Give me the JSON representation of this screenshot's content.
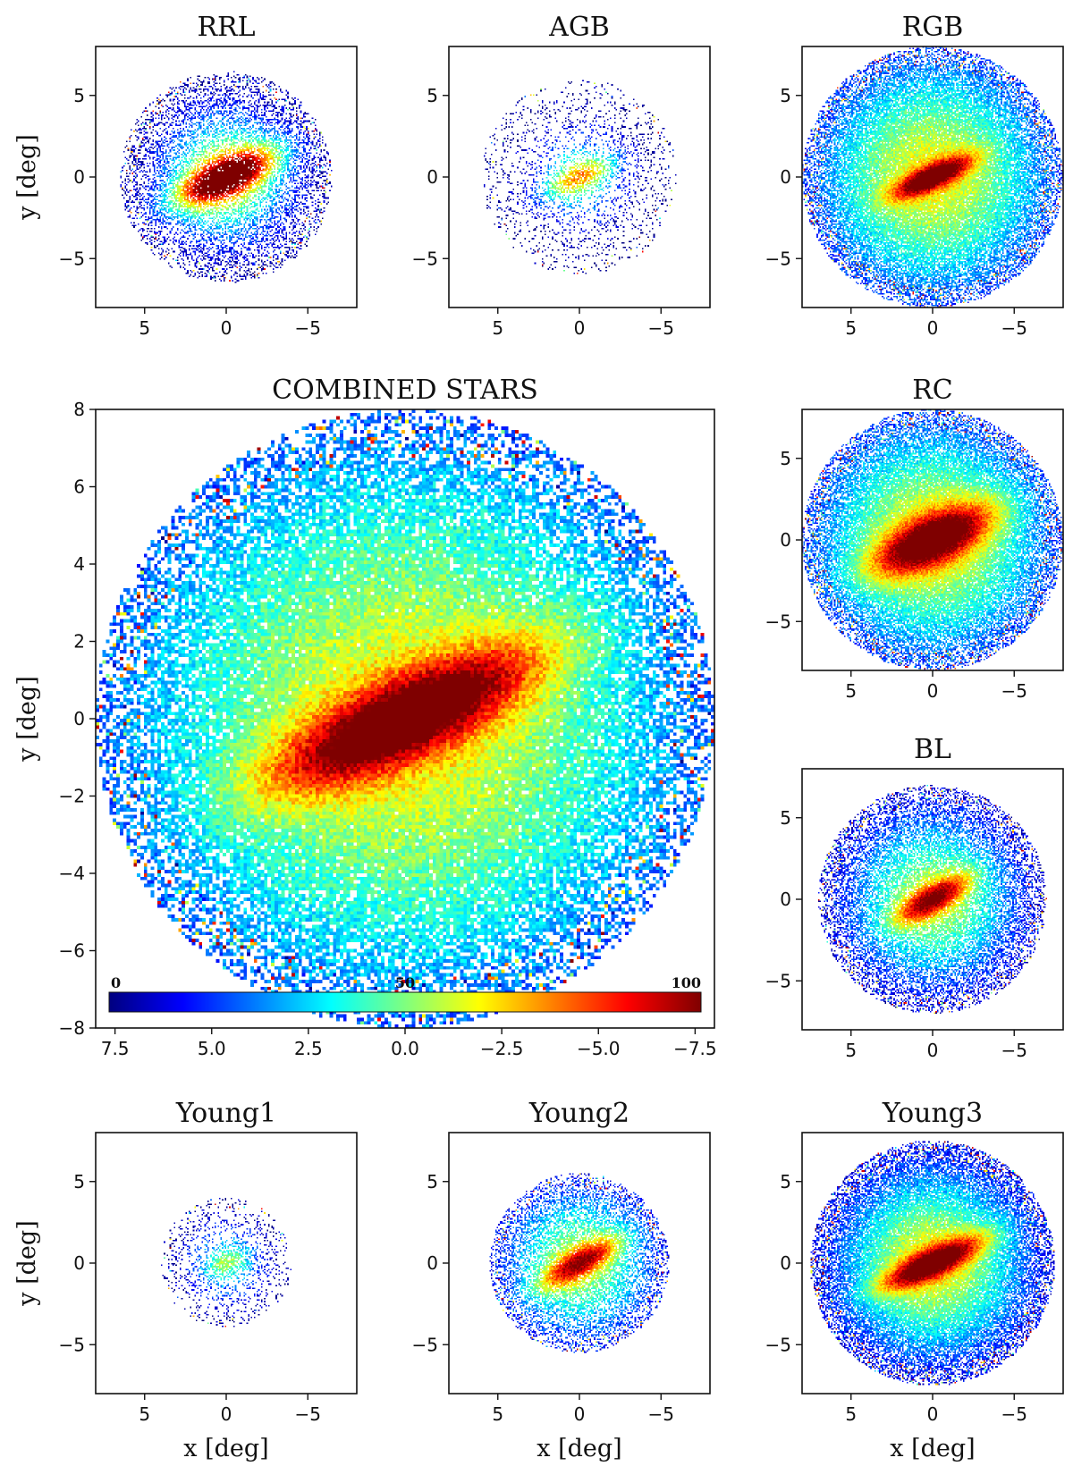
{
  "chart_data": [
    {
      "type": "heatmap",
      "title": "RRL",
      "xlabel": "",
      "ylabel": "y [deg]",
      "xlim": [
        8,
        -8
      ],
      "ylim": [
        -8,
        8
      ],
      "xticks": [
        "5",
        "0",
        "−5"
      ],
      "yticks": [
        "5",
        "0",
        "−5"
      ],
      "density": {
        "extent_radius": 6.5,
        "spread": 2.6,
        "fill": 0.45,
        "core_peak": 100,
        "core_angle_deg": 25,
        "core_length": 2.6,
        "core_width": 0.8
      }
    },
    {
      "type": "heatmap",
      "title": "AGB",
      "xlabel": "",
      "ylabel": "",
      "xlim": [
        8,
        -8
      ],
      "ylim": [
        -8,
        8
      ],
      "xticks": [
        "5",
        "0",
        "−5"
      ],
      "yticks": [
        "5",
        "0",
        "−5"
      ],
      "density": {
        "extent_radius": 6.0,
        "spread": 1.8,
        "fill": 0.15,
        "core_peak": 45,
        "core_angle_deg": 25,
        "core_length": 2.0,
        "core_width": 0.6
      }
    },
    {
      "type": "heatmap",
      "title": "RGB",
      "xlabel": "",
      "ylabel": "",
      "xlim": [
        8,
        -8
      ],
      "ylim": [
        -8,
        8
      ],
      "xticks": [
        "5",
        "0",
        "−5"
      ],
      "yticks": [
        "5",
        "0",
        "−5"
      ],
      "density": {
        "extent_radius": 8.0,
        "spread": 5.0,
        "fill": 0.95,
        "core_peak": 100,
        "core_angle_deg": 25,
        "core_length": 1.8,
        "core_width": 0.5
      }
    },
    {
      "type": "heatmap",
      "title": "COMBINED STARS",
      "xlabel": "",
      "ylabel": "y [deg]",
      "xlim": [
        8,
        -8
      ],
      "ylim": [
        -8,
        8
      ],
      "xticks": [
        "7.5",
        "5.0",
        "2.5",
        "0.0",
        "−2.5",
        "−5.0",
        "−7.5"
      ],
      "yticks": [
        "8",
        "6",
        "4",
        "2",
        "0",
        "−2",
        "−4",
        "−6",
        "−8"
      ],
      "colorbar": {
        "min_label": "0",
        "mid_label": "50",
        "max_label": "100"
      },
      "density": {
        "extent_radius": 8.0,
        "spread": 5.5,
        "fill": 1.0,
        "core_peak": 100,
        "core_angle_deg": 25,
        "core_length": 2.6,
        "core_width": 0.7
      }
    },
    {
      "type": "heatmap",
      "title": "RC",
      "xlabel": "",
      "ylabel": "",
      "xlim": [
        8,
        -8
      ],
      "ylim": [
        -8,
        8
      ],
      "xticks": [
        "5",
        "0",
        "−5"
      ],
      "yticks": [
        "5",
        "0",
        "−5"
      ],
      "density": {
        "extent_radius": 8.0,
        "spread": 5.0,
        "fill": 0.95,
        "core_peak": 100,
        "core_angle_deg": 25,
        "core_length": 2.8,
        "core_width": 1.0
      }
    },
    {
      "type": "heatmap",
      "title": "BL",
      "xlabel": "",
      "ylabel": "",
      "xlim": [
        8,
        -8
      ],
      "ylim": [
        -8,
        8
      ],
      "xticks": [
        "5",
        "0",
        "−5"
      ],
      "yticks": [
        "5",
        "0",
        "−5"
      ],
      "density": {
        "extent_radius": 7.0,
        "spread": 3.6,
        "fill": 0.7,
        "core_peak": 80,
        "core_angle_deg": 30,
        "core_length": 1.8,
        "core_width": 0.6
      }
    },
    {
      "type": "heatmap",
      "title": "Young1",
      "xlabel": "x [deg]",
      "ylabel": "y [deg]",
      "xlim": [
        8,
        -8
      ],
      "ylim": [
        -8,
        8
      ],
      "xticks": [
        "5",
        "0",
        "−5"
      ],
      "yticks": [
        "5",
        "0",
        "−5"
      ],
      "density": {
        "extent_radius": 4.0,
        "spread": 1.6,
        "fill": 0.2,
        "core_peak": 25,
        "core_angle_deg": 20,
        "core_length": 1.0,
        "core_width": 0.5
      }
    },
    {
      "type": "heatmap",
      "title": "Young2",
      "xlabel": "x [deg]",
      "ylabel": "",
      "xlim": [
        8,
        -8
      ],
      "ylim": [
        -8,
        8
      ],
      "xticks": [
        "5",
        "0",
        "−5"
      ],
      "yticks": [
        "5",
        "0",
        "−5"
      ],
      "density": {
        "extent_radius": 5.5,
        "spread": 3.2,
        "fill": 0.6,
        "core_peak": 75,
        "core_angle_deg": 30,
        "core_length": 2.0,
        "core_width": 0.6
      }
    },
    {
      "type": "heatmap",
      "title": "Young3",
      "xlabel": "x [deg]",
      "ylabel": "",
      "xlim": [
        8,
        -8
      ],
      "ylim": [
        -8,
        8
      ],
      "xticks": [
        "5",
        "0",
        "−5"
      ],
      "yticks": [
        "5",
        "0",
        "−5"
      ],
      "density": {
        "extent_radius": 7.5,
        "spread": 4.0,
        "fill": 0.95,
        "core_peak": 100,
        "core_angle_deg": 25,
        "core_length": 2.4,
        "core_width": 0.6
      }
    }
  ],
  "colors": {
    "colormap": [
      "#00007f",
      "#0000ff",
      "#007fff",
      "#00ffff",
      "#7fff7f",
      "#ffff00",
      "#ff7f00",
      "#ff0000",
      "#7f0000"
    ],
    "axis": "#111111",
    "background": "#ffffff"
  }
}
